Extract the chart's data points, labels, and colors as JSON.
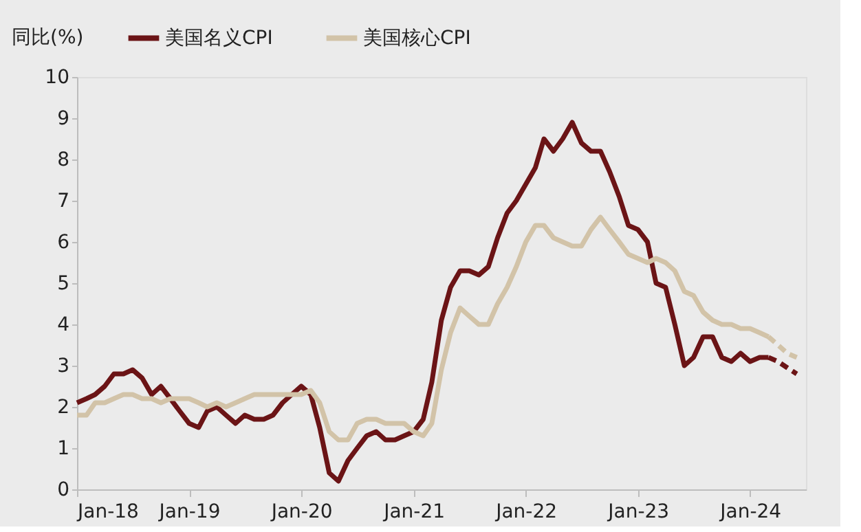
{
  "chart_data": {
    "type": "line",
    "ylabel": "同比(%)",
    "x": [
      "2018-01",
      "2018-02",
      "2018-03",
      "2018-04",
      "2018-05",
      "2018-06",
      "2018-07",
      "2018-08",
      "2018-09",
      "2018-10",
      "2018-11",
      "2018-12",
      "2019-01",
      "2019-02",
      "2019-03",
      "2019-04",
      "2019-05",
      "2019-06",
      "2019-07",
      "2019-08",
      "2019-09",
      "2019-10",
      "2019-11",
      "2019-12",
      "2020-01",
      "2020-02",
      "2020-03",
      "2020-04",
      "2020-05",
      "2020-06",
      "2020-07",
      "2020-08",
      "2020-09",
      "2020-10",
      "2020-11",
      "2020-12",
      "2021-01",
      "2021-02",
      "2021-03",
      "2021-04",
      "2021-05",
      "2021-06",
      "2021-07",
      "2021-08",
      "2021-09",
      "2021-10",
      "2021-11",
      "2021-12",
      "2022-01",
      "2022-02",
      "2022-03",
      "2022-04",
      "2022-05",
      "2022-06",
      "2022-07",
      "2022-08",
      "2022-09",
      "2022-10",
      "2022-11",
      "2022-12",
      "2023-01",
      "2023-02",
      "2023-03",
      "2023-04",
      "2023-05",
      "2023-06",
      "2023-07",
      "2023-08",
      "2023-09",
      "2023-10",
      "2023-11",
      "2023-12",
      "2024-01",
      "2024-02",
      "2024-03"
    ],
    "series": [
      {
        "name": "美国名义CPI",
        "color": "#6b1416",
        "line_style": "solid",
        "values": [
          2.1,
          2.2,
          2.3,
          2.5,
          2.8,
          2.8,
          2.9,
          2.7,
          2.3,
          2.5,
          2.2,
          1.9,
          1.6,
          1.5,
          1.9,
          2.0,
          1.8,
          1.6,
          1.8,
          1.7,
          1.7,
          1.8,
          2.1,
          2.3,
          2.5,
          2.3,
          1.5,
          0.4,
          0.2,
          0.7,
          1.0,
          1.3,
          1.4,
          1.2,
          1.2,
          1.3,
          1.4,
          1.7,
          2.6,
          4.1,
          4.9,
          5.3,
          5.3,
          5.2,
          5.4,
          6.1,
          6.7,
          7.0,
          7.4,
          7.8,
          8.5,
          8.2,
          8.5,
          8.9,
          8.4,
          8.2,
          8.2,
          7.7,
          7.1,
          6.4,
          6.3,
          6.0,
          5.0,
          4.9,
          4.0,
          3.0,
          3.2,
          3.7,
          3.7,
          3.2,
          3.1,
          3.3,
          3.1,
          3.2,
          3.2
        ]
      },
      {
        "name": "美国核心CPI",
        "color": "#d2c3a8",
        "line_style": "solid",
        "values": [
          1.8,
          1.8,
          2.1,
          2.1,
          2.2,
          2.3,
          2.3,
          2.2,
          2.2,
          2.1,
          2.2,
          2.2,
          2.2,
          2.1,
          2.0,
          2.1,
          2.0,
          2.1,
          2.2,
          2.3,
          2.3,
          2.3,
          2.3,
          2.3,
          2.3,
          2.4,
          2.1,
          1.4,
          1.2,
          1.2,
          1.6,
          1.7,
          1.7,
          1.6,
          1.6,
          1.6,
          1.4,
          1.3,
          1.6,
          2.9,
          3.8,
          4.4,
          4.2,
          4.0,
          4.0,
          4.5,
          4.9,
          5.4,
          6.0,
          6.4,
          6.4,
          6.1,
          6.0,
          5.9,
          5.9,
          6.3,
          6.6,
          6.3,
          6.0,
          5.7,
          5.6,
          5.5,
          5.6,
          5.5,
          5.3,
          4.8,
          4.7,
          4.3,
          4.1,
          4.0,
          4.0,
          3.9,
          3.9,
          3.8,
          3.7
        ]
      },
      {
        "color": "#6b1416",
        "line_style": "dashed",
        "x": [
          "2024-03",
          "2024-04",
          "2024-05",
          "2024-06"
        ],
        "values": [
          3.2,
          3.1,
          2.95,
          2.8
        ]
      },
      {
        "color": "#d2c3a8",
        "line_style": "dashed",
        "x": [
          "2024-03",
          "2024-04",
          "2024-05",
          "2024-06"
        ],
        "values": [
          3.7,
          3.5,
          3.3,
          3.2
        ]
      }
    ],
    "xlim": [
      "2018-01",
      "2024-07"
    ],
    "xticks": [
      {
        "value": "2018-01",
        "label": "Jan-18"
      },
      {
        "value": "2019-01",
        "label": "Jan-19"
      },
      {
        "value": "2020-01",
        "label": "Jan-20"
      },
      {
        "value": "2021-01",
        "label": "Jan-21"
      },
      {
        "value": "2022-01",
        "label": "Jan-22"
      },
      {
        "value": "2023-01",
        "label": "Jan-23"
      },
      {
        "value": "2024-01",
        "label": "Jan-24"
      }
    ],
    "ylim": [
      0,
      10
    ],
    "yticks": [
      0,
      1,
      2,
      3,
      4,
      5,
      6,
      7,
      8,
      9,
      10
    ],
    "grid": false,
    "legend": "top",
    "marker": "none"
  }
}
